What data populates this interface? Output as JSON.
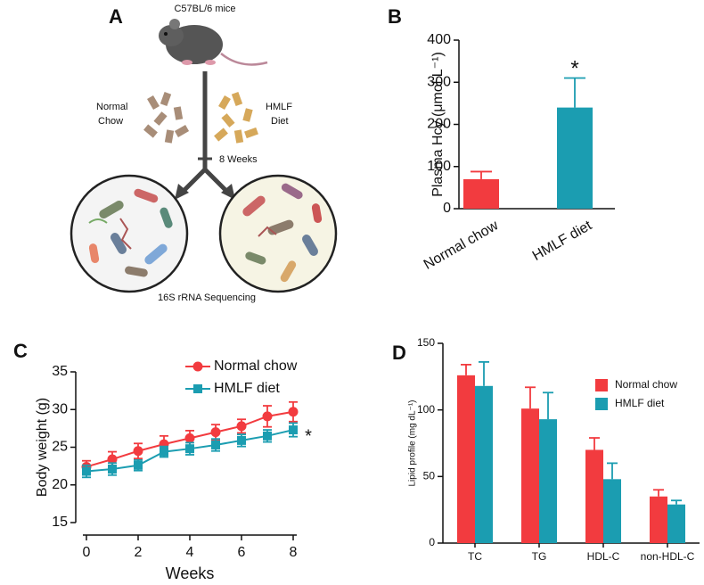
{
  "diagram": {
    "panel_label": "A",
    "title": "C57BL/6 mice",
    "left_label": [
      "Normal",
      "Chow"
    ],
    "right_label": [
      "HMLF",
      "Diet"
    ],
    "duration": "8 Weeks",
    "caption": "16S rRNA Sequencing"
  },
  "chart_data": [
    {
      "type": "bar",
      "panel_label": "B",
      "ylabel": "Plasma Hcy (μmol L⁻¹)",
      "categories": [
        "Normal chow",
        "HMLF diet"
      ],
      "values": [
        70,
        240
      ],
      "errors": [
        18,
        70
      ],
      "colors": [
        "#f23b3f",
        "#1b9db1"
      ],
      "ylim": [
        0,
        400
      ],
      "yticks": [
        0,
        100,
        200,
        300,
        400
      ],
      "annotations": [
        "*"
      ]
    },
    {
      "type": "line",
      "panel_label": "C",
      "xlabel": "Weeks",
      "ylabel": "Body weight (g)",
      "x": [
        0,
        1,
        2,
        3,
        4,
        5,
        6,
        7,
        8
      ],
      "series": [
        {
          "name": "Normal chow",
          "color": "#f23b3f",
          "marker": "circle",
          "values": [
            22.4,
            23.4,
            24.5,
            25.4,
            26.2,
            27.0,
            27.8,
            29.1,
            29.7
          ],
          "errors": [
            0.8,
            1.0,
            1.0,
            1.1,
            1.0,
            1.0,
            0.9,
            1.4,
            1.3
          ]
        },
        {
          "name": "HMLF diet",
          "color": "#1b9db1",
          "marker": "square",
          "values": [
            21.8,
            22.1,
            22.6,
            24.4,
            24.8,
            25.3,
            25.9,
            26.5,
            27.3
          ],
          "errors": [
            0.8,
            0.8,
            0.7,
            0.7,
            0.8,
            0.8,
            0.8,
            0.8,
            0.9
          ]
        }
      ],
      "xlim": [
        0,
        8
      ],
      "xticks": [
        0,
        2,
        4,
        6,
        8
      ],
      "ylim": [
        15,
        35
      ],
      "yticks": [
        15,
        20,
        25,
        30,
        35
      ],
      "annotations": [
        "*"
      ],
      "legend": "top"
    },
    {
      "type": "grouped_bar",
      "panel_label": "D",
      "ylabel": "Lipid profile (mg dL⁻¹)",
      "categories": [
        "TC",
        "TG",
        "HDL-C",
        "non-HDL-C"
      ],
      "series": [
        {
          "name": "Normal chow",
          "color": "#f23b3f",
          "values": [
            126,
            101,
            70,
            35
          ],
          "errors": [
            8,
            16,
            9,
            5
          ]
        },
        {
          "name": "HMLF diet",
          "color": "#1b9db1",
          "values": [
            118,
            93,
            48,
            29
          ],
          "errors": [
            18,
            20,
            12,
            3
          ]
        }
      ],
      "ylim": [
        0,
        150
      ],
      "yticks": [
        0,
        50,
        100,
        150
      ],
      "legend": "upper right"
    }
  ]
}
